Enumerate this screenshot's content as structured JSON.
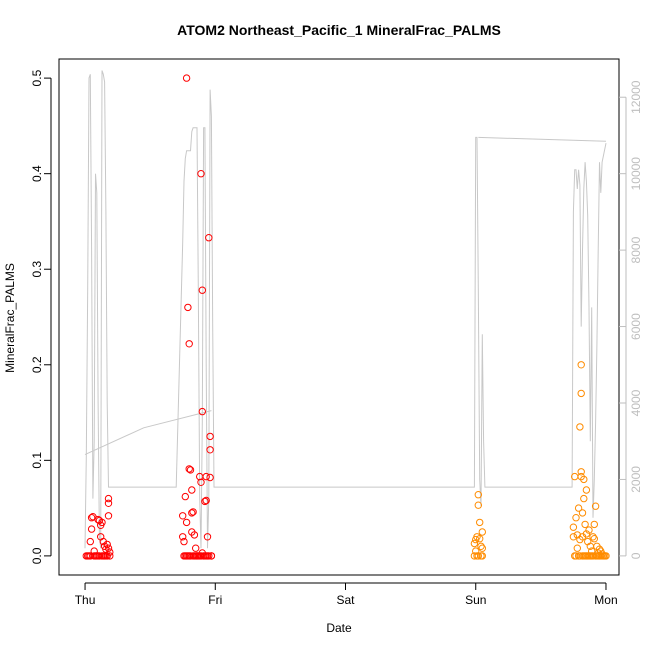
{
  "chart_data": {
    "type": "scatter",
    "title": "ATOM2 Northeast_Pacific_1 MineralFrac_PALMS",
    "xlabel": "Date",
    "ylabel": "MineralFrac_PALMS",
    "x_ticks": [
      "Thu",
      "Fri",
      "Sat",
      "Sun",
      "Mon"
    ],
    "x_tick_days": [
      0,
      1,
      2,
      3,
      4
    ],
    "xlim_days": [
      -0.2,
      4.1
    ],
    "ylim": [
      -0.02,
      0.52
    ],
    "y_ticks": [
      0.0,
      0.1,
      0.2,
      0.3,
      0.4,
      0.5
    ],
    "y_tick_labels": [
      "0.0",
      "0.1",
      "0.2",
      "0.3",
      "0.4",
      "0.5"
    ],
    "y2lim": [
      -500,
      13000
    ],
    "y2_ticks": [
      0,
      2000,
      4000,
      6000,
      8000,
      10000,
      12000
    ],
    "y2_tick_labels": [
      "0",
      "2000",
      "4000",
      "6000",
      "8000",
      "10000",
      "12000"
    ],
    "grid": false,
    "colors": {
      "flight_a": "#ff0000",
      "flight_b": "#ff8c00",
      "altitude_line": "#c8c8c8",
      "axis": "#000000",
      "y2_axis": "#bebebe"
    },
    "series": [
      {
        "color": "#ff0000",
        "marker": "open-circle",
        "points": [
          [
            0.01,
            0.0
          ],
          [
            0.02,
            0.0
          ],
          [
            0.03,
            0.0
          ],
          [
            0.04,
            0.015
          ],
          [
            0.04,
            0.0
          ],
          [
            0.05,
            0.028
          ],
          [
            0.05,
            0.04
          ],
          [
            0.06,
            0.041
          ],
          [
            0.07,
            0.0
          ],
          [
            0.07,
            0.005
          ],
          [
            0.08,
            0.0
          ],
          [
            0.09,
            0.0
          ],
          [
            0.1,
            0.0
          ],
          [
            0.1,
            0.038
          ],
          [
            0.11,
            0.037
          ],
          [
            0.11,
            0.0
          ],
          [
            0.12,
            0.032
          ],
          [
            0.12,
            0.02
          ],
          [
            0.13,
            0.0
          ],
          [
            0.13,
            0.035
          ],
          [
            0.14,
            0.0
          ],
          [
            0.14,
            0.015
          ],
          [
            0.15,
            0.01
          ],
          [
            0.15,
            0.0
          ],
          [
            0.16,
            0.007
          ],
          [
            0.16,
            0.0
          ],
          [
            0.17,
            0.012
          ],
          [
            0.17,
            0.0
          ],
          [
            0.18,
            0.06
          ],
          [
            0.18,
            0.055
          ],
          [
            0.18,
            0.042
          ],
          [
            0.18,
            0.008
          ],
          [
            0.19,
            0.0
          ],
          [
            0.19,
            0.004
          ],
          [
            0.75,
            0.042
          ],
          [
            0.75,
            0.02
          ],
          [
            0.76,
            0.015
          ],
          [
            0.76,
            0.0
          ],
          [
            0.77,
            0.0
          ],
          [
            0.77,
            0.062
          ],
          [
            0.78,
            0.035
          ],
          [
            0.78,
            0.0
          ],
          [
            0.78,
            0.5
          ],
          [
            0.79,
            0.0
          ],
          [
            0.79,
            0.26
          ],
          [
            0.8,
            0.0
          ],
          [
            0.8,
            0.222
          ],
          [
            0.8,
            0.091
          ],
          [
            0.81,
            0.09
          ],
          [
            0.81,
            0.0
          ],
          [
            0.82,
            0.069
          ],
          [
            0.82,
            0.045
          ],
          [
            0.82,
            0.025
          ],
          [
            0.83,
            0.0
          ],
          [
            0.83,
            0.046
          ],
          [
            0.84,
            0.022
          ],
          [
            0.84,
            0.0
          ],
          [
            0.85,
            0.0
          ],
          [
            0.85,
            0.008
          ],
          [
            0.86,
            0.0
          ],
          [
            0.86,
            0.0
          ],
          [
            0.87,
            0.0
          ],
          [
            0.88,
            0.083
          ],
          [
            0.88,
            0.0
          ],
          [
            0.89,
            0.077
          ],
          [
            0.89,
            0.4
          ],
          [
            0.89,
            0.0
          ],
          [
            0.9,
            0.278
          ],
          [
            0.9,
            0.151
          ],
          [
            0.9,
            0.003
          ],
          [
            0.91,
            0.0
          ],
          [
            0.92,
            0.0
          ],
          [
            0.92,
            0.057
          ],
          [
            0.93,
            0.083
          ],
          [
            0.93,
            0.058
          ],
          [
            0.93,
            0.0
          ],
          [
            0.94,
            0.0
          ],
          [
            0.94,
            0.02
          ],
          [
            0.95,
            0.333
          ],
          [
            0.95,
            0.0
          ],
          [
            0.96,
            0.125
          ],
          [
            0.96,
            0.111
          ],
          [
            0.96,
            0.082
          ],
          [
            0.97,
            0.0
          ],
          [
            0.97,
            0.0
          ]
        ]
      },
      {
        "color": "#ff8c00",
        "marker": "open-circle",
        "points": [
          [
            2.99,
            0.013
          ],
          [
            2.99,
            0.0
          ],
          [
            3.0,
            0.017
          ],
          [
            3.0,
            0.005
          ],
          [
            3.01,
            0.0
          ],
          [
            3.01,
            0.02
          ],
          [
            3.02,
            0.064
          ],
          [
            3.02,
            0.053
          ],
          [
            3.02,
            0.0
          ],
          [
            3.03,
            0.035
          ],
          [
            3.03,
            0.018
          ],
          [
            3.04,
            0.01
          ],
          [
            3.04,
            0.0
          ],
          [
            3.05,
            0.025
          ],
          [
            3.05,
            0.008
          ],
          [
            3.05,
            0.0
          ],
          [
            3.75,
            0.03
          ],
          [
            3.75,
            0.02
          ],
          [
            3.76,
            0.0
          ],
          [
            3.76,
            0.083
          ],
          [
            3.77,
            0.04
          ],
          [
            3.77,
            0.0
          ],
          [
            3.78,
            0.022
          ],
          [
            3.78,
            0.008
          ],
          [
            3.79,
            0.0
          ],
          [
            3.79,
            0.05
          ],
          [
            3.8,
            0.0
          ],
          [
            3.8,
            0.017
          ],
          [
            3.8,
            0.135
          ],
          [
            3.81,
            0.2
          ],
          [
            3.81,
            0.17
          ],
          [
            3.81,
            0.083
          ],
          [
            3.81,
            0.088
          ],
          [
            3.82,
            0.0
          ],
          [
            3.82,
            0.045
          ],
          [
            3.82,
            0.02
          ],
          [
            3.83,
            0.08
          ],
          [
            3.83,
            0.06
          ],
          [
            3.83,
            0.0
          ],
          [
            3.84,
            0.0
          ],
          [
            3.84,
            0.033
          ],
          [
            3.85,
            0.069
          ],
          [
            3.85,
            0.0
          ],
          [
            3.85,
            0.023
          ],
          [
            3.86,
            0.0
          ],
          [
            3.86,
            0.015
          ],
          [
            3.87,
            0.0
          ],
          [
            3.87,
            0.027
          ],
          [
            3.88,
            0.0
          ],
          [
            3.88,
            0.01
          ],
          [
            3.89,
            0.0
          ],
          [
            3.89,
            0.005
          ],
          [
            3.9,
            0.02
          ],
          [
            3.9,
            0.0
          ],
          [
            3.91,
            0.018
          ],
          [
            3.91,
            0.033
          ],
          [
            3.92,
            0.052
          ],
          [
            3.92,
            0.0
          ],
          [
            3.93,
            0.0
          ],
          [
            3.93,
            0.01
          ],
          [
            3.94,
            0.003
          ],
          [
            3.94,
            0.0
          ],
          [
            3.95,
            0.0
          ],
          [
            3.95,
            0.007
          ],
          [
            3.96,
            0.0
          ],
          [
            3.96,
            0.005
          ],
          [
            3.97,
            0.0
          ],
          [
            3.97,
            0.002
          ],
          [
            3.98,
            0.0
          ],
          [
            3.99,
            0.0
          ],
          [
            4.0,
            0.0
          ]
        ]
      }
    ],
    "altitude_line": {
      "color": "#c8c8c8",
      "points": [
        [
          0.0,
          200
        ],
        [
          0.01,
          2600
        ],
        [
          0.02,
          7000
        ],
        [
          0.03,
          12500
        ],
        [
          0.04,
          12600
        ],
        [
          0.05,
          8000
        ],
        [
          0.06,
          1500
        ],
        [
          0.07,
          3000
        ],
        [
          0.08,
          10000
        ],
        [
          0.09,
          9500
        ],
        [
          0.1,
          4000
        ],
        [
          0.11,
          500
        ],
        [
          0.12,
          200
        ],
        [
          0.13,
          12700
        ],
        [
          0.14,
          12600
        ],
        [
          0.15,
          12400
        ],
        [
          0.16,
          9000
        ],
        [
          0.17,
          4000
        ],
        [
          0.18,
          1800
        ],
        [
          0.2,
          1800
        ],
        [
          0.45,
          1800
        ],
        [
          0.7,
          1800
        ],
        [
          0.75,
          8200
        ],
        [
          0.76,
          9800
        ],
        [
          0.77,
          10400
        ],
        [
          0.78,
          10600
        ],
        [
          0.79,
          10600
        ],
        [
          0.81,
          10600
        ],
        [
          0.82,
          11100
        ],
        [
          0.83,
          11200
        ],
        [
          0.86,
          11200
        ],
        [
          0.87,
          7000
        ],
        [
          0.88,
          1500
        ],
        [
          0.89,
          200
        ],
        [
          0.9,
          3500
        ],
        [
          0.91,
          11200
        ],
        [
          0.92,
          11200
        ],
        [
          0.93,
          5000
        ],
        [
          0.94,
          200
        ],
        [
          0.95,
          1500
        ],
        [
          0.96,
          12200
        ],
        [
          0.97,
          11500
        ],
        [
          0.98,
          6000
        ],
        [
          0.99,
          1800
        ],
        [
          1.2,
          1800
        ],
        [
          1.8,
          1800
        ],
        [
          2.5,
          1800
        ],
        [
          2.99,
          1800
        ],
        [
          3.0,
          10950
        ],
        [
          3.01,
          10950
        ],
        [
          3.02,
          7000
        ],
        [
          3.03,
          2000
        ],
        [
          3.04,
          1300
        ],
        [
          3.05,
          5800
        ],
        [
          3.06,
          3000
        ],
        [
          3.07,
          1800
        ],
        [
          3.5,
          1800
        ],
        [
          3.74,
          1800
        ],
        [
          3.75,
          9000
        ],
        [
          3.76,
          10100
        ],
        [
          3.77,
          10100
        ],
        [
          3.78,
          9600
        ],
        [
          3.79,
          10100
        ],
        [
          3.8,
          9700
        ],
        [
          3.81,
          6000
        ],
        [
          3.82,
          8000
        ],
        [
          3.83,
          9600
        ],
        [
          3.84,
          10300
        ],
        [
          3.85,
          9800
        ],
        [
          3.86,
          8900
        ],
        [
          3.87,
          6500
        ],
        [
          3.88,
          3000
        ],
        [
          3.89,
          6500
        ],
        [
          3.9,
          1000
        ],
        [
          3.91,
          2000
        ],
        [
          3.92,
          3500
        ],
        [
          3.93,
          5500
        ],
        [
          3.94,
          8000
        ],
        [
          3.95,
          10300
        ],
        [
          3.96,
          9500
        ],
        [
          3.97,
          10300
        ],
        [
          4.0,
          10800
        ]
      ]
    },
    "altitude_line_b_points": [
      [
        0.0,
        2650
      ],
      [
        0.45,
        3350
      ],
      [
        0.97,
        3800
      ]
    ],
    "altitude_line_c_points": [
      [
        3.02,
        10950
      ],
      [
        4.0,
        10850
      ]
    ]
  }
}
